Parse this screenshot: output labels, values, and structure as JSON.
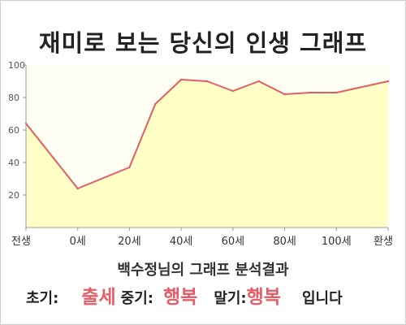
{
  "title": "재미로 보는 당신의 인생 그래프",
  "chart_data": {
    "type": "area",
    "title": "재미로 보는 당신의 인생 그래프",
    "x_tick_labels": [
      "전생",
      "0세",
      "20세",
      "40세",
      "60세",
      "80세",
      "100세",
      "환생"
    ],
    "y_ticks": [
      20,
      40,
      60,
      80,
      100
    ],
    "ylim": [
      0,
      100
    ],
    "grid": false,
    "series": [
      {
        "x": [
          "전생",
          "0세",
          "20세",
          "30세",
          "40세",
          "50세",
          "60세",
          "70세",
          "80세",
          "90세",
          "100세",
          "환생"
        ],
        "values": [
          64,
          24,
          37,
          76,
          91,
          90,
          84,
          90,
          82,
          83,
          83,
          90
        ]
      }
    ],
    "colors": {
      "line": "#e35d67",
      "fill": "#ffffc6"
    }
  },
  "summary": {
    "title": "백수정님의 그래프 분석결과",
    "early_label": "초기:",
    "early_value": "출세",
    "middle_label": "중기:",
    "middle_value": "행복",
    "late_label": "말기:",
    "late_value": "행복",
    "ending": "입니다"
  }
}
